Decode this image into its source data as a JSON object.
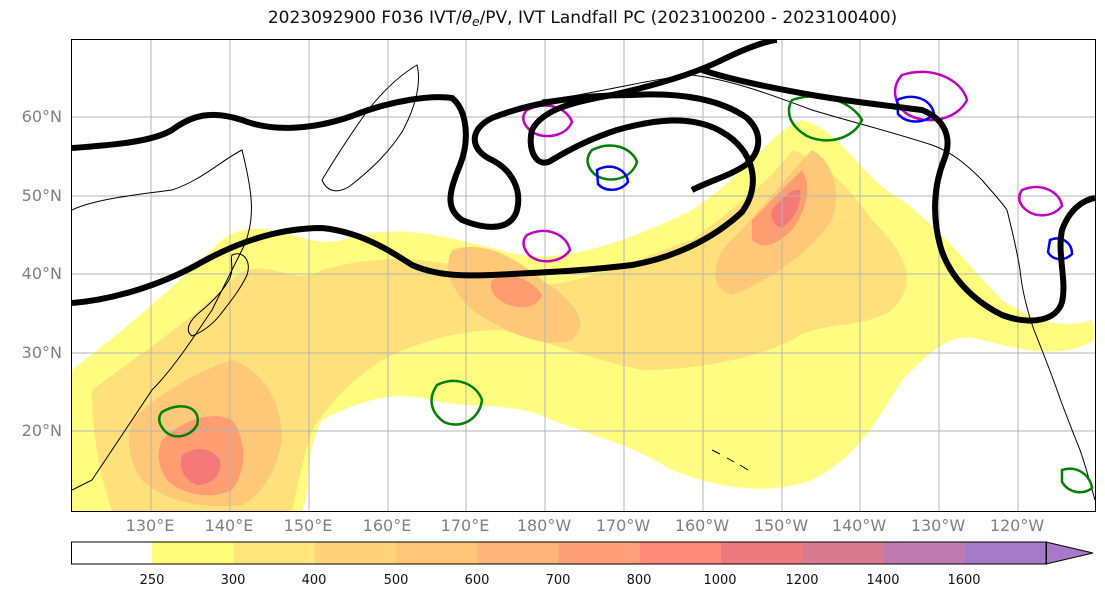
{
  "title": {
    "prefix": "2023092900 F036 IVT/",
    "theta": "θ",
    "subscript": "e",
    "suffix": "/PV, IVT Landfall PC (2023100200 - 2023100400)"
  },
  "map": {
    "lat_labels": [
      "60°N",
      "50°N",
      "40°N",
      "30°N",
      "20°N"
    ],
    "lon_labels": [
      "130°E",
      "140°E",
      "150°E",
      "160°E",
      "170°E",
      "180°W",
      "170°W",
      "160°W",
      "150°W",
      "140°W",
      "130°W",
      "120°W"
    ],
    "colors": {
      "ivt_250": "#fffc80",
      "ivt_300": "#ffe07a",
      "ivt_400": "#ffc878",
      "ivt_600": "#ff9c70",
      "ivt_800": "#f47a7a",
      "pv_contour": "#000000",
      "theta_e_green": "#008000",
      "theta_e_magenta": "#c000c0",
      "theta_e_blue": "#0000ee"
    }
  },
  "colorbar": {
    "ticks": [
      "250",
      "300",
      "400",
      "500",
      "600",
      "700",
      "800",
      "1000",
      "1200",
      "1400",
      "1600"
    ],
    "colors": [
      "#ffffff",
      "#fffd7a",
      "#ffe67c",
      "#ffd47b",
      "#ffc67a",
      "#ffb57a",
      "#ffa07a",
      "#ff8a7a",
      "#ee7a80",
      "#d97a90",
      "#bf7ab0",
      "#a67ac6"
    ],
    "extend": "max"
  }
}
